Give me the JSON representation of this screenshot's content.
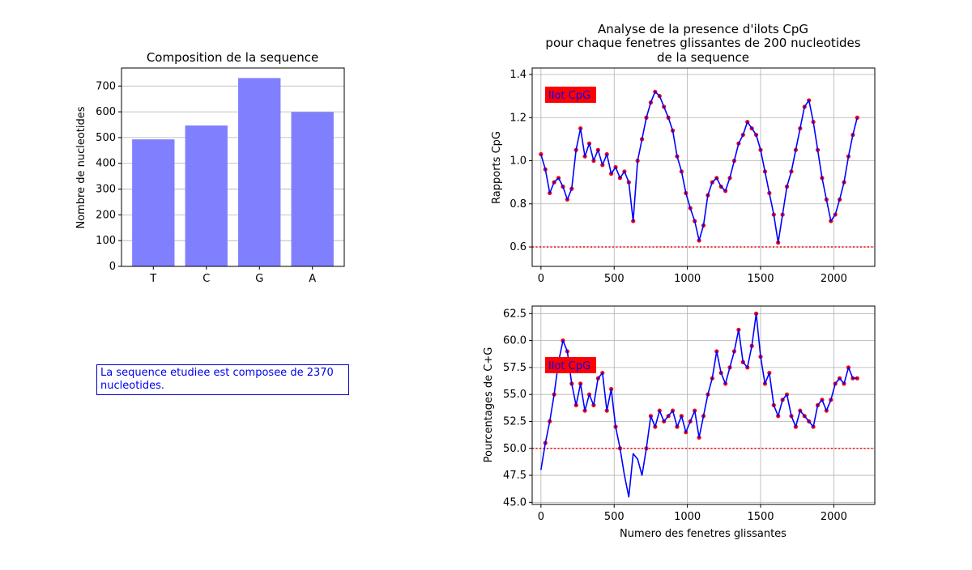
{
  "info_text": "La sequence etudiee est composee de 2370 nucleotides.",
  "colors": {
    "bar": "#8080ff",
    "line": "#0000ff",
    "dots": "#ff0000",
    "threshold": "#ff0000",
    "badge_bg": "#ff0000",
    "badge_text": "#0000ff"
  },
  "chart_data": [
    {
      "type": "bar",
      "title": "Composition de la sequence",
      "xlabel": "",
      "ylabel": "Nombre de nucleotides",
      "categories": [
        "T",
        "C",
        "G",
        "A"
      ],
      "values": [
        493,
        547,
        731,
        599
      ],
      "ylim": [
        0,
        770
      ],
      "yticks": [
        0,
        100,
        200,
        300,
        400,
        500,
        600,
        700
      ],
      "grid": "y"
    },
    {
      "type": "line",
      "title_lines": [
        "Analyse de la presence d'ilots CpG",
        "pour chaque fenetres glissantes de 200 nucleotides",
        "de la sequence"
      ],
      "xlabel": "",
      "ylabel": "Rapports CpG",
      "badge": "Ilot CpG",
      "threshold": 0.6,
      "xlim": [
        -60,
        2280
      ],
      "ylim": [
        0.51,
        1.43
      ],
      "xticks": [
        0,
        500,
        1000,
        1500,
        2000
      ],
      "yticks": [
        0.6,
        0.8,
        1.0,
        1.2,
        1.4
      ],
      "ytick_labels": [
        "0.6",
        "0.8",
        "1.0",
        "1.2",
        "1.4"
      ],
      "grid": true,
      "series": [
        {
          "x": [
            0,
            30,
            60,
            90,
            120,
            150,
            180,
            210,
            240,
            270,
            300,
            330,
            360,
            390,
            420,
            450,
            480,
            510,
            540,
            570,
            600,
            630,
            660,
            690,
            720,
            750,
            780,
            810,
            840,
            870,
            900,
            930,
            960,
            990,
            1020,
            1050,
            1080,
            1110,
            1140,
            1170,
            1200,
            1230,
            1260,
            1290,
            1320,
            1350,
            1380,
            1410,
            1440,
            1470,
            1500,
            1530,
            1560,
            1590,
            1620,
            1650,
            1680,
            1710,
            1740,
            1770,
            1800,
            1830,
            1860,
            1890,
            1920,
            1950,
            1980,
            2010,
            2040,
            2070,
            2100,
            2130,
            2160
          ],
          "y": [
            1.03,
            0.96,
            0.85,
            0.9,
            0.92,
            0.88,
            0.82,
            0.87,
            1.05,
            1.15,
            1.02,
            1.08,
            1.0,
            1.05,
            0.98,
            1.03,
            0.94,
            0.97,
            0.92,
            0.95,
            0.9,
            0.72,
            1.0,
            1.1,
            1.2,
            1.27,
            1.32,
            1.3,
            1.25,
            1.2,
            1.14,
            1.02,
            0.95,
            0.85,
            0.78,
            0.72,
            0.63,
            0.7,
            0.84,
            0.9,
            0.92,
            0.88,
            0.86,
            0.92,
            1.0,
            1.08,
            1.12,
            1.18,
            1.15,
            1.12,
            1.05,
            0.95,
            0.85,
            0.75,
            0.62,
            0.75,
            0.88,
            0.95,
            1.05,
            1.15,
            1.25,
            1.28,
            1.18,
            1.05,
            0.92,
            0.82,
            0.72,
            0.75,
            0.82,
            0.9,
            1.02,
            1.12,
            1.2
          ]
        }
      ]
    },
    {
      "type": "line",
      "xlabel": "Numero des fenetres glissantes",
      "ylabel": "Pourcentages de C+G",
      "badge": "Ilot CpG",
      "threshold": 50.0,
      "xlim": [
        -60,
        2280
      ],
      "ylim": [
        44.8,
        63.2
      ],
      "xticks": [
        0,
        500,
        1000,
        1500,
        2000
      ],
      "yticks": [
        45.0,
        47.5,
        50.0,
        52.5,
        55.0,
        57.5,
        60.0,
        62.5
      ],
      "ytick_labels": [
        "45.0",
        "47.5",
        "50.0",
        "52.5",
        "55.0",
        "57.5",
        "60.0",
        "62.5"
      ],
      "grid": true,
      "series": [
        {
          "x": [
            0,
            30,
            60,
            90,
            120,
            150,
            180,
            210,
            240,
            270,
            300,
            330,
            360,
            390,
            420,
            450,
            480,
            510,
            540,
            570,
            600,
            630,
            660,
            690,
            720,
            750,
            780,
            810,
            840,
            870,
            900,
            930,
            960,
            990,
            1020,
            1050,
            1080,
            1110,
            1140,
            1170,
            1200,
            1230,
            1260,
            1290,
            1320,
            1350,
            1380,
            1410,
            1440,
            1470,
            1500,
            1530,
            1560,
            1590,
            1620,
            1650,
            1680,
            1710,
            1740,
            1770,
            1800,
            1830,
            1860,
            1890,
            1920,
            1950,
            1980,
            2010,
            2040,
            2070,
            2100,
            2130,
            2160
          ],
          "y": [
            48.0,
            50.5,
            52.5,
            55.0,
            58.0,
            60.0,
            59.0,
            56.0,
            54.0,
            56.0,
            53.5,
            55.0,
            54.0,
            56.5,
            57.0,
            53.5,
            55.5,
            52.0,
            50.0,
            47.5,
            45.5,
            49.5,
            49.0,
            47.5,
            50.0,
            53.0,
            52.0,
            53.5,
            52.5,
            53.0,
            53.5,
            52.0,
            53.0,
            51.5,
            52.5,
            53.5,
            51.0,
            53.0,
            55.0,
            56.5,
            59.0,
            57.0,
            56.0,
            57.5,
            59.0,
            61.0,
            58.0,
            57.5,
            59.5,
            62.5,
            58.5,
            56.0,
            57.0,
            54.0,
            53.0,
            54.5,
            55.0,
            53.0,
            52.0,
            53.5,
            53.0,
            52.5,
            52.0,
            54.0,
            54.5,
            53.5,
            54.5,
            56.0,
            56.5,
            56.0,
            57.5,
            56.5,
            56.5
          ]
        }
      ]
    }
  ]
}
